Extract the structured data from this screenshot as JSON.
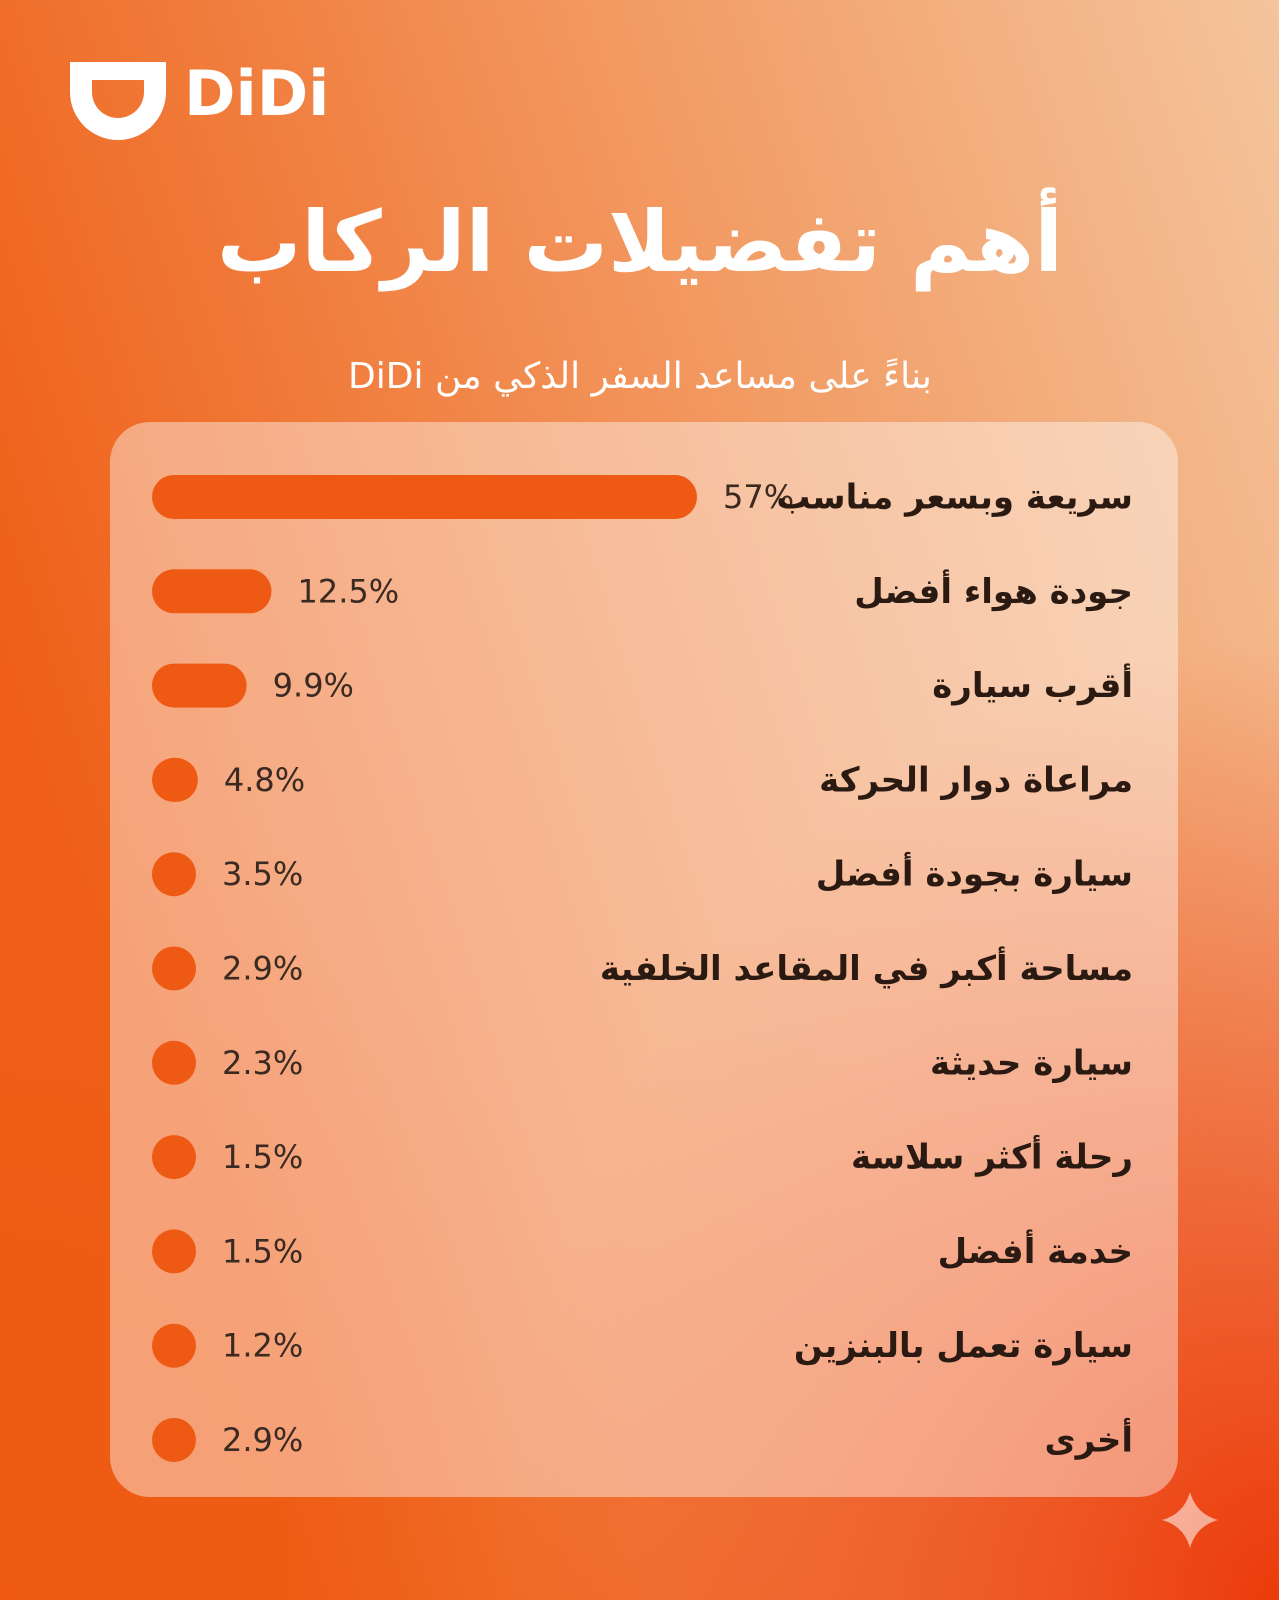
{
  "logo": "DiDi",
  "chart_data": {
    "type": "bar",
    "orientation": "horizontal",
    "title": "أهم تفضيلات الركاب",
    "subtitle": "بناءً على مساعد السفر الذكي من DiDi",
    "categories": [
      "سريعة وبسعر مناسب",
      "جودة هواء أفضل",
      "أقرب سيارة",
      "مراعاة دوار الحركة",
      "سيارة بجودة أفضل",
      "مساحة أكبر في المقاعد الخلفية",
      "سيارة حديثة",
      "رحلة أكثر سلاسة",
      "خدمة أفضل",
      "سيارة تعمل بالبنزين",
      "أخرى"
    ],
    "values": [
      57,
      12.5,
      9.9,
      4.8,
      3.5,
      2.9,
      2.3,
      1.5,
      1.5,
      1.2,
      2.9
    ],
    "value_labels": [
      "57%",
      "12.5%",
      "9.9%",
      "4.8%",
      "3.5%",
      "2.9%",
      "2.3%",
      "1.5%",
      "1.5%",
      "1.2%",
      "2.9%"
    ],
    "color": "#ee5a14"
  }
}
